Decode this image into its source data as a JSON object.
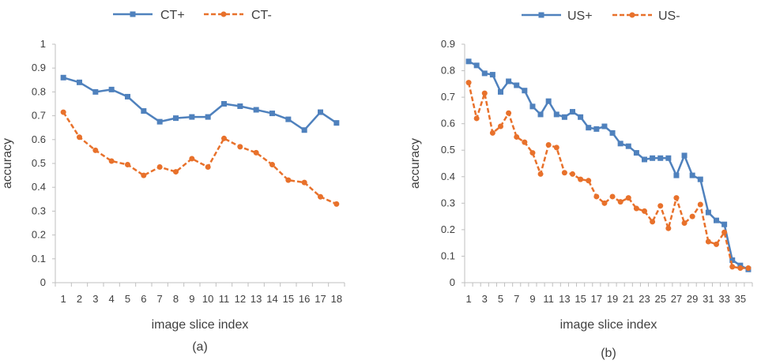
{
  "colors": {
    "positive": "#4f81bd",
    "negative": "#e8712b",
    "axis": "#bfbfbf",
    "text": "#404040"
  },
  "chart_data": [
    {
      "type": "line",
      "panel_label": "(a)",
      "xlabel": "image slice index",
      "ylabel": "accuracy",
      "x": [
        1,
        2,
        3,
        4,
        5,
        6,
        7,
        8,
        9,
        10,
        11,
        12,
        13,
        14,
        15,
        16,
        17,
        18
      ],
      "ylim": [
        0,
        1
      ],
      "yticks": [
        "0",
        "0.1",
        "0.2",
        "0.3",
        "0.4",
        "0.5",
        "0.6",
        "0.7",
        "0.8",
        "0.9",
        "1"
      ],
      "legend_position": "top-center",
      "grid": false,
      "series": [
        {
          "name": "CT+",
          "marker": "square",
          "line": "solid",
          "values": [
            0.86,
            0.84,
            0.8,
            0.81,
            0.78,
            0.72,
            0.675,
            0.69,
            0.695,
            0.695,
            0.75,
            0.74,
            0.725,
            0.71,
            0.685,
            0.64,
            0.715,
            0.67
          ]
        },
        {
          "name": "CT-",
          "marker": "circle",
          "line": "dashed",
          "values": [
            0.715,
            0.61,
            0.555,
            0.51,
            0.495,
            0.45,
            0.485,
            0.465,
            0.52,
            0.485,
            0.605,
            0.57,
            0.545,
            0.495,
            0.43,
            0.42,
            0.36,
            0.33
          ]
        }
      ]
    },
    {
      "type": "line",
      "panel_label": "(b)",
      "xlabel": "image slice index",
      "ylabel": "accuracy",
      "x": [
        1,
        2,
        3,
        4,
        5,
        6,
        7,
        8,
        9,
        10,
        11,
        12,
        13,
        14,
        15,
        16,
        17,
        18,
        19,
        20,
        21,
        22,
        23,
        24,
        25,
        26,
        27,
        28,
        29,
        30,
        31,
        32,
        33,
        34,
        35,
        36
      ],
      "xtick_labels": [
        "1",
        "3",
        "5",
        "7",
        "9",
        "11",
        "13",
        "15",
        "17",
        "19",
        "21",
        "23",
        "25",
        "27",
        "29",
        "31",
        "33",
        "35"
      ],
      "ylim": [
        0,
        0.9
      ],
      "yticks": [
        "0",
        "0.1",
        "0.2",
        "0.3",
        "0.4",
        "0.5",
        "0.6",
        "0.7",
        "0.8",
        "0.9"
      ],
      "legend_position": "top-center",
      "grid": false,
      "series": [
        {
          "name": "US+",
          "marker": "square",
          "line": "solid",
          "values": [
            0.835,
            0.82,
            0.79,
            0.785,
            0.72,
            0.76,
            0.745,
            0.725,
            0.665,
            0.635,
            0.685,
            0.635,
            0.625,
            0.645,
            0.625,
            0.585,
            0.58,
            0.59,
            0.565,
            0.525,
            0.515,
            0.49,
            0.465,
            0.47,
            0.47,
            0.47,
            0.405,
            0.48,
            0.405,
            0.39,
            0.265,
            0.235,
            0.22,
            0.085,
            0.065,
            0.05
          ]
        },
        {
          "name": "US-",
          "marker": "circle",
          "line": "dashed",
          "values": [
            0.755,
            0.62,
            0.715,
            0.565,
            0.59,
            0.64,
            0.55,
            0.53,
            0.49,
            0.41,
            0.52,
            0.51,
            0.415,
            0.41,
            0.39,
            0.385,
            0.325,
            0.3,
            0.325,
            0.305,
            0.32,
            0.28,
            0.27,
            0.23,
            0.29,
            0.205,
            0.32,
            0.225,
            0.25,
            0.295,
            0.155,
            0.145,
            0.19,
            0.06,
            0.055,
            0.055
          ]
        }
      ]
    }
  ]
}
